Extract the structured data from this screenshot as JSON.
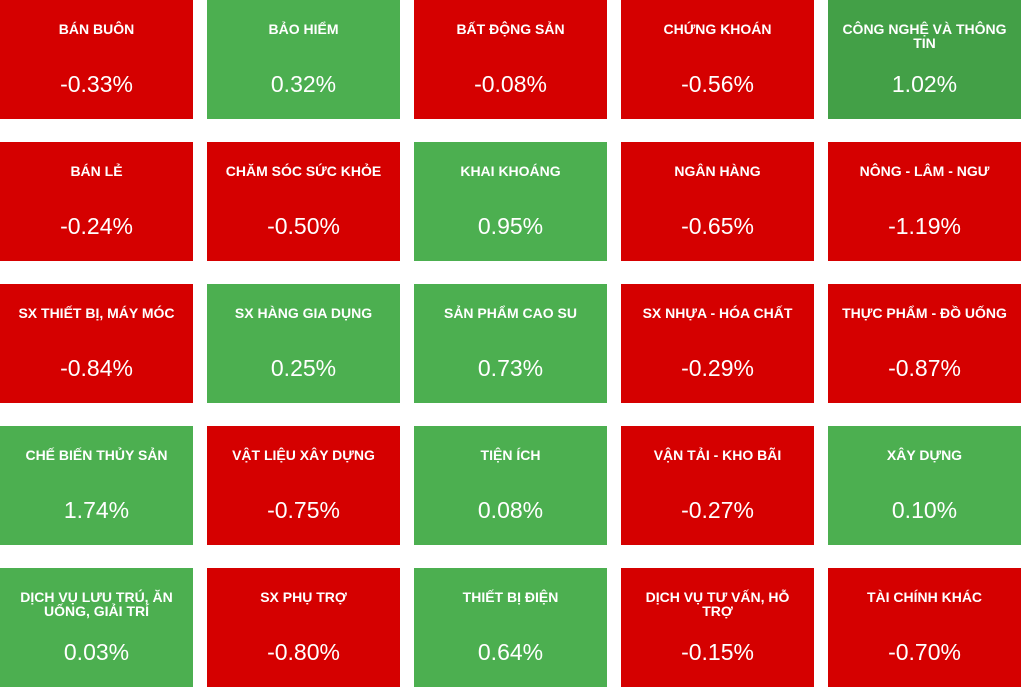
{
  "tiles": [
    {
      "name": "BÁN BUÔN",
      "value": "-0.33%",
      "color": "#d50000"
    },
    {
      "name": "BẢO HIỂM",
      "value": "0.32%",
      "color": "#4caf50"
    },
    {
      "name": "BẤT ĐỘNG SẢN",
      "value": "-0.08%",
      "color": "#d50000"
    },
    {
      "name": "CHỨNG KHOÁN",
      "value": "-0.56%",
      "color": "#d50000"
    },
    {
      "name": "CÔNG NGHỆ VÀ THÔNG TIN",
      "value": "1.02%",
      "color": "#43a047"
    },
    {
      "name": "BÁN LẺ",
      "value": "-0.24%",
      "color": "#d50000"
    },
    {
      "name": "CHĂM SÓC SỨC KHỎE",
      "value": "-0.50%",
      "color": "#d50000"
    },
    {
      "name": "KHAI KHOÁNG",
      "value": "0.95%",
      "color": "#4caf50"
    },
    {
      "name": "NGÂN HÀNG",
      "value": "-0.65%",
      "color": "#d50000"
    },
    {
      "name": "NÔNG - LÂM - NGƯ",
      "value": "-1.19%",
      "color": "#d50000"
    },
    {
      "name": "SX THIẾT BỊ, MÁY MÓC",
      "value": "-0.84%",
      "color": "#d50000"
    },
    {
      "name": "SX HÀNG GIA DỤNG",
      "value": "0.25%",
      "color": "#4caf50"
    },
    {
      "name": "SẢN PHẨM CAO SU",
      "value": "0.73%",
      "color": "#4caf50"
    },
    {
      "name": "SX NHỰA - HÓA CHẤT",
      "value": "-0.29%",
      "color": "#d50000"
    },
    {
      "name": "THỰC PHẨM - ĐỒ UỐNG",
      "value": "-0.87%",
      "color": "#d50000"
    },
    {
      "name": "CHẾ BIẾN THỦY SẢN",
      "value": "1.74%",
      "color": "#4caf50"
    },
    {
      "name": "VẬT LIỆU XÂY DỰNG",
      "value": "-0.75%",
      "color": "#d50000"
    },
    {
      "name": "TIỆN ÍCH",
      "value": "0.08%",
      "color": "#4caf50"
    },
    {
      "name": "VẬN TẢI - KHO BÃI",
      "value": "-0.27%",
      "color": "#d50000"
    },
    {
      "name": "XÂY DỰNG",
      "value": "0.10%",
      "color": "#4caf50"
    },
    {
      "name": "DỊCH VỤ LƯU TRÚ, ĂN UỐNG, GIẢI TRÍ",
      "value": "0.03%",
      "color": "#4caf50"
    },
    {
      "name": "SX PHỤ TRỢ",
      "value": "-0.80%",
      "color": "#d50000"
    },
    {
      "name": "THIẾT BỊ ĐIỆN",
      "value": "0.64%",
      "color": "#4caf50"
    },
    {
      "name": "DỊCH VỤ TƯ VẤN, HỖ TRỢ",
      "value": "-0.15%",
      "color": "#d50000"
    },
    {
      "name": "TÀI CHÍNH KHÁC",
      "value": "-0.70%",
      "color": "#d50000"
    }
  ]
}
